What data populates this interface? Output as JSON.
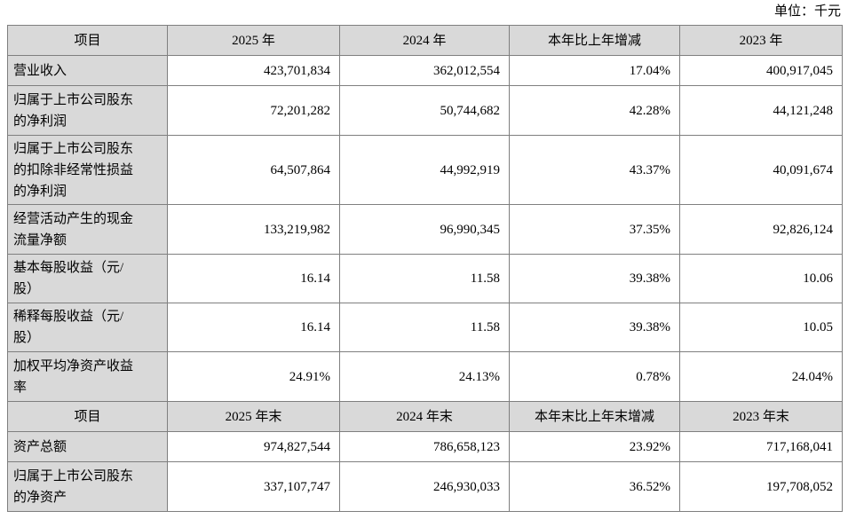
{
  "unit_label": "单位：千元",
  "colors": {
    "header_bg": "#d9d9d9",
    "border": "#7f7f7f",
    "text": "#000000"
  },
  "table1": {
    "headers": {
      "item": "项目",
      "y2025": "2025 年",
      "y2024": "2024 年",
      "change": "本年比上年增减",
      "y2023": "2023 年"
    },
    "rows": [
      {
        "label": "营业收入",
        "y2025": "423,701,834",
        "y2024": "362,012,554",
        "change": "17.04%",
        "y2023": "400,917,045"
      },
      {
        "label": "归属于上市公司股东\n的净利润",
        "y2025": "72,201,282",
        "y2024": "50,744,682",
        "change": "42.28%",
        "y2023": "44,121,248"
      },
      {
        "label": "归属于上市公司股东\n的扣除非经常性损益\n的净利润",
        "y2025": "64,507,864",
        "y2024": "44,992,919",
        "change": "43.37%",
        "y2023": "40,091,674"
      },
      {
        "label": "经营活动产生的现金\n流量净额",
        "y2025": "133,219,982",
        "y2024": "96,990,345",
        "change": "37.35%",
        "y2023": "92,826,124"
      },
      {
        "label": "基本每股收益（元/\n股）",
        "y2025": "16.14",
        "y2024": "11.58",
        "change": "39.38%",
        "y2023": "10.06"
      },
      {
        "label": "稀释每股收益（元/\n股）",
        "y2025": "16.14",
        "y2024": "11.58",
        "change": "39.38%",
        "y2023": "10.05"
      },
      {
        "label": "加权平均净资产收益\n率",
        "y2025": "24.91%",
        "y2024": "24.13%",
        "change": "0.78%",
        "y2023": "24.04%"
      }
    ]
  },
  "table2": {
    "headers": {
      "item": "项目",
      "y2025": "2025 年末",
      "y2024": "2024 年末",
      "change": "本年末比上年末增减",
      "y2023": "2023 年末"
    },
    "rows": [
      {
        "label": "资产总额",
        "y2025": "974,827,544",
        "y2024": "786,658,123",
        "change": "23.92%",
        "y2023": "717,168,041"
      },
      {
        "label": "归属于上市公司股东\n的净资产",
        "y2025": "337,107,747",
        "y2024": "246,930,033",
        "change": "36.52%",
        "y2023": "197,708,052"
      }
    ]
  }
}
